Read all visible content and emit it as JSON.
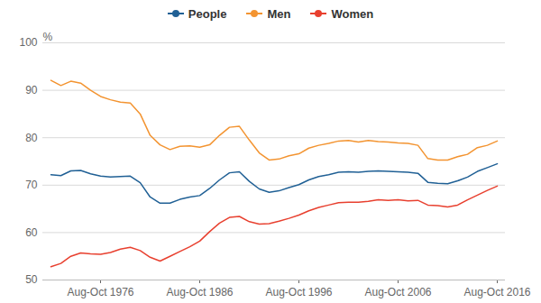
{
  "chart_data": {
    "type": "line",
    "y_label": "%",
    "categories": [
      null,
      null,
      null,
      null,
      null,
      "Aug-Oct 1976",
      null,
      null,
      null,
      null,
      null,
      null,
      null,
      null,
      null,
      "Aug-Oct 1986",
      null,
      null,
      null,
      null,
      null,
      null,
      null,
      null,
      null,
      "Aug-Oct 1996",
      null,
      null,
      null,
      null,
      null,
      null,
      null,
      null,
      null,
      "Aug-Oct 2006",
      null,
      null,
      null,
      null,
      null,
      null,
      null,
      null,
      null,
      "Aug-Oct 2016"
    ],
    "series": [
      {
        "name": "People",
        "color": "#206095",
        "values": [
          72.2,
          72.0,
          73.0,
          73.1,
          72.4,
          71.9,
          71.7,
          71.8,
          71.9,
          70.5,
          67.5,
          66.2,
          66.2,
          67.0,
          67.5,
          67.8,
          69.3,
          71.1,
          72.6,
          72.8,
          70.8,
          69.2,
          68.5,
          68.8,
          69.5,
          70.1,
          71.1,
          71.8,
          72.2,
          72.7,
          72.8,
          72.7,
          72.9,
          73.0,
          72.9,
          72.8,
          72.7,
          72.5,
          70.6,
          70.4,
          70.3,
          70.9,
          71.7,
          72.9,
          73.7,
          74.5
        ]
      },
      {
        "name": "Men",
        "color": "#f39431",
        "values": [
          92.1,
          91.0,
          91.9,
          91.5,
          90.0,
          88.7,
          88.0,
          87.5,
          87.3,
          85.0,
          80.5,
          78.5,
          77.5,
          78.2,
          78.3,
          78.0,
          78.5,
          80.5,
          82.2,
          82.4,
          79.5,
          76.8,
          75.3,
          75.5,
          76.2,
          76.6,
          77.8,
          78.4,
          78.8,
          79.3,
          79.4,
          79.1,
          79.4,
          79.2,
          79.1,
          78.9,
          78.8,
          78.4,
          75.6,
          75.3,
          75.3,
          76.0,
          76.5,
          77.9,
          78.4,
          79.3
        ]
      },
      {
        "name": "Women",
        "color": "#e8402f",
        "values": [
          52.8,
          53.5,
          55.0,
          55.7,
          55.5,
          55.4,
          55.8,
          56.5,
          56.9,
          56.2,
          54.8,
          54.0,
          55.0,
          56.0,
          57.0,
          58.2,
          60.2,
          62.0,
          63.2,
          63.4,
          62.3,
          61.8,
          61.9,
          62.4,
          63.0,
          63.7,
          64.6,
          65.3,
          65.8,
          66.3,
          66.4,
          66.4,
          66.6,
          66.9,
          66.8,
          66.9,
          66.7,
          66.8,
          65.8,
          65.7,
          65.4,
          65.8,
          66.9,
          67.9,
          68.9,
          69.8
        ]
      }
    ],
    "ylim": [
      50,
      100
    ],
    "yticks": [
      50,
      60,
      70,
      80,
      90,
      100
    ],
    "grid": true,
    "legend": "top"
  }
}
